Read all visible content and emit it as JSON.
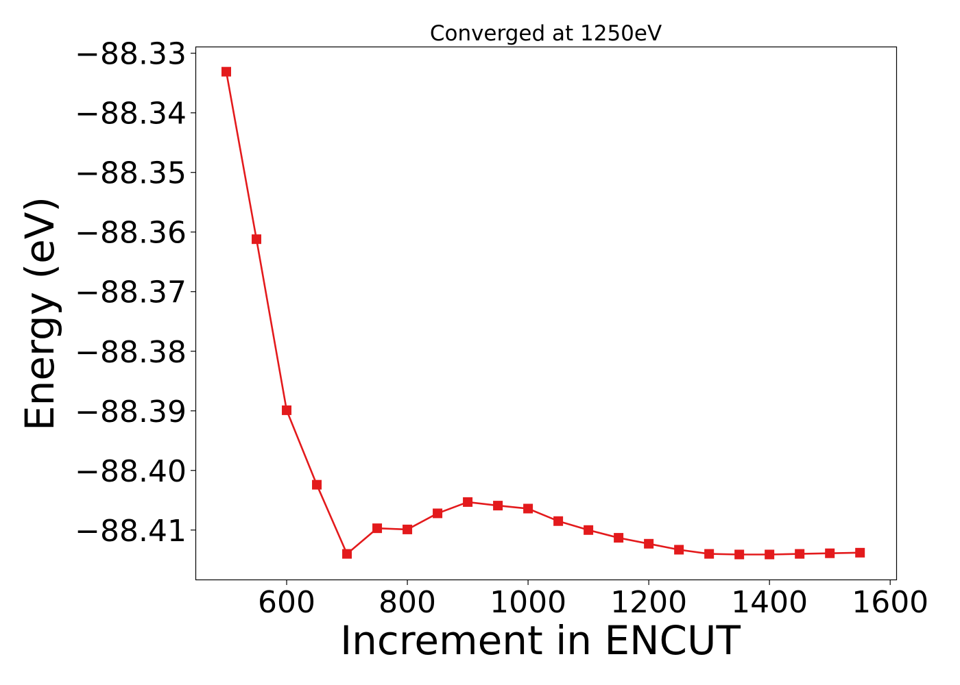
{
  "chart_data": {
    "type": "line",
    "title": "Converged at 1250eV",
    "xlabel": "Increment in ENCUT",
    "ylabel": "Energy (eV)",
    "xlim": [
      450,
      1610
    ],
    "ylim": [
      -88.4183,
      -88.329
    ],
    "x_ticks": [
      600,
      800,
      1000,
      1200,
      1400,
      1600
    ],
    "x_tick_labels": [
      "600",
      "800",
      "1000",
      "1200",
      "1400",
      "1600"
    ],
    "y_ticks": [
      -88.33,
      -88.34,
      -88.35,
      -88.36,
      -88.37,
      -88.38,
      -88.39,
      -88.4,
      -88.41
    ],
    "y_tick_labels": [
      "−88.33",
      "−88.34",
      "−88.35",
      "−88.36",
      "−88.37",
      "−88.38",
      "−88.39",
      "−88.40",
      "−88.41"
    ],
    "grid": false,
    "series": [
      {
        "color": "#e31a1c",
        "marker": "square",
        "x": [
          500,
          550,
          600,
          650,
          700,
          750,
          800,
          850,
          900,
          950,
          1000,
          1050,
          1100,
          1150,
          1200,
          1250,
          1300,
          1350,
          1400,
          1450,
          1500,
          1550
        ],
        "y": [
          -88.3331,
          -88.3612,
          -88.3899,
          -88.4024,
          -88.414,
          -88.4097,
          -88.4099,
          -88.4072,
          -88.4053,
          -88.4059,
          -88.4064,
          -88.4085,
          -88.41,
          -88.4113,
          -88.4123,
          -88.4133,
          -88.414,
          -88.4141,
          -88.4141,
          -88.414,
          -88.4139,
          -88.4138
        ]
      }
    ]
  }
}
